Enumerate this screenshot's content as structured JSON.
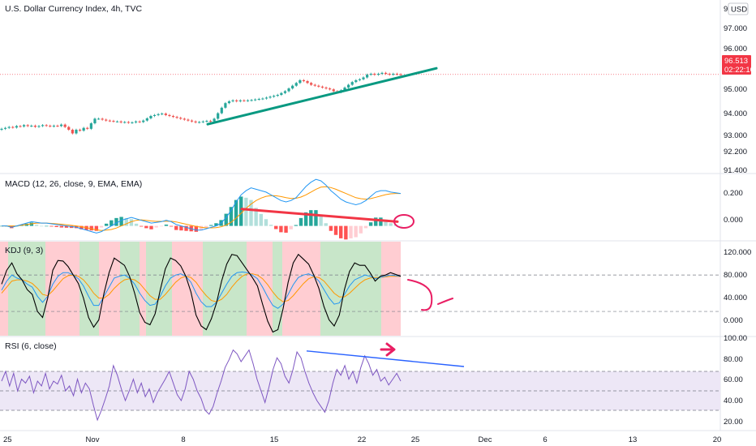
{
  "header": {
    "title": "U.S. Dollar Currency Index, 4h, TVC",
    "currency_label": "USD"
  },
  "price_tag": {
    "price": "96.513",
    "countdown": "02:22:10",
    "color": "#f23645"
  },
  "colors": {
    "up": "#26a69a",
    "down": "#ef5350",
    "trendline_price": "#089981",
    "trendline_macd": "#f23645",
    "trendline_rsi": "#2962ff",
    "kdj_k": "#2196f3",
    "kdj_d": "#ff9800",
    "kdj_j": "#000000",
    "rsi_line": "#7e57c2",
    "annotation": "#e91e63",
    "kdj_bg_green": "#c8e6c9",
    "kdj_bg_red": "#ffcdd2"
  },
  "chart_data": [
    {
      "panel": "price",
      "type": "candlestick",
      "ylim": [
        91.2,
        99.6
      ],
      "y_ticks": [
        "97.000",
        "96.000",
        "95.000",
        "94.000",
        "93.000",
        "92.200",
        "91.400"
      ],
      "top_tick_partial": "95",
      "last_price": 96.513,
      "close_series": [
        93.55,
        93.6,
        93.65,
        93.62,
        93.7,
        93.68,
        93.75,
        93.7,
        93.72,
        93.66,
        93.7,
        93.75,
        93.72,
        93.68,
        93.72,
        93.7,
        93.78,
        93.65,
        93.5,
        93.3,
        93.5,
        93.45,
        93.6,
        93.55,
        93.85,
        94.1,
        94.1,
        94.05,
        94.0,
        93.98,
        93.95,
        93.95,
        93.9,
        93.92,
        93.88,
        93.9,
        93.95,
        93.92,
        94.0,
        94.12,
        94.25,
        94.3,
        94.35,
        94.38,
        94.3,
        94.25,
        94.2,
        94.15,
        94.1,
        94.05,
        94.0,
        93.95,
        93.9,
        93.92,
        93.95,
        93.98,
        93.96,
        94.1,
        94.4,
        94.7,
        94.95,
        95.05,
        95.1,
        95.05,
        95.1,
        95.08,
        95.1,
        95.12,
        95.15,
        95.18,
        95.2,
        95.25,
        95.3,
        95.35,
        95.4,
        95.5,
        95.6,
        95.75,
        95.9,
        96.05,
        96.2,
        96.15,
        96.05,
        95.95,
        95.9,
        95.85,
        95.8,
        95.75,
        95.7,
        95.6,
        95.55,
        95.65,
        95.8,
        95.95,
        96.1,
        96.2,
        96.25,
        96.35,
        96.5,
        96.55,
        96.5,
        96.55,
        96.6,
        96.55,
        96.5,
        96.55,
        96.52,
        96.51
      ],
      "trendline": {
        "from": [
          "Nov 8 +1",
          93.8
        ],
        "to": [
          "Nov 25",
          96.85
        ]
      }
    },
    {
      "panel": "macd",
      "title": "MACD (12, 26, close, 9, EMA, EMA)",
      "type": "line",
      "ylim": [
        -0.1,
        0.36
      ],
      "y_ticks": [
        "0.200",
        "0.000"
      ],
      "series": [
        {
          "name": "MACD",
          "values": [
            0.0,
            0.0,
            -0.01,
            0.0,
            0.01,
            0.02,
            0.03,
            0.025,
            0.02,
            0.02,
            0.015,
            0.01,
            0.005,
            0.0,
            -0.005,
            -0.01,
            -0.02,
            -0.03,
            -0.04,
            -0.05,
            -0.04,
            -0.02,
            0.0,
            0.02,
            0.04,
            0.05,
            0.06,
            0.05,
            0.04,
            0.03,
            0.02,
            0.025,
            0.03,
            0.04,
            0.03,
            0.01,
            0.0,
            -0.01,
            -0.02,
            -0.03,
            -0.03,
            -0.02,
            -0.01,
            0.0,
            0.02,
            0.06,
            0.11,
            0.17,
            0.22,
            0.25,
            0.27,
            0.26,
            0.25,
            0.24,
            0.22,
            0.2,
            0.18,
            0.17,
            0.18,
            0.2,
            0.24,
            0.28,
            0.31,
            0.33,
            0.32,
            0.29,
            0.25,
            0.22,
            0.19,
            0.17,
            0.16,
            0.15,
            0.16,
            0.18,
            0.21,
            0.24,
            0.25,
            0.25,
            0.24,
            0.235,
            0.23
          ]
        },
        {
          "name": "Signal",
          "values": [
            0.0,
            0.0,
            0.0,
            0.0,
            0.005,
            0.01,
            0.015,
            0.02,
            0.02,
            0.02,
            0.018,
            0.015,
            0.012,
            0.008,
            0.004,
            0.0,
            -0.005,
            -0.012,
            -0.02,
            -0.028,
            -0.033,
            -0.03,
            -0.025,
            -0.015,
            0.0,
            0.015,
            0.03,
            0.04,
            0.043,
            0.04,
            0.035,
            0.032,
            0.032,
            0.034,
            0.033,
            0.028,
            0.02,
            0.012,
            0.004,
            -0.004,
            -0.01,
            -0.014,
            -0.014,
            -0.012,
            -0.006,
            0.006,
            0.026,
            0.055,
            0.09,
            0.125,
            0.155,
            0.18,
            0.197,
            0.21,
            0.215,
            0.214,
            0.208,
            0.2,
            0.195,
            0.196,
            0.205,
            0.22,
            0.24,
            0.26,
            0.275,
            0.278,
            0.272,
            0.26,
            0.245,
            0.23,
            0.215,
            0.2,
            0.193,
            0.19,
            0.194,
            0.203,
            0.213,
            0.222,
            0.228,
            0.23,
            0.23
          ]
        }
      ],
      "trendline": {
        "from": [
          "Nov 12",
          0.12
        ],
        "to": [
          "Nov 24",
          0.03
        ]
      }
    },
    {
      "panel": "kdj",
      "title": "KDJ (9, 3)",
      "type": "line",
      "ylim": [
        -20,
        135
      ],
      "y_ticks": [
        "120.000",
        "80.000",
        "40.000",
        "0.000"
      ],
      "reference_levels": [
        80,
        20
      ],
      "series": [
        {
          "name": "K",
          "values": [
            55,
            70,
            80,
            75,
            72,
            65,
            60,
            45,
            35,
            45,
            65,
            78,
            84,
            84,
            80,
            74,
            62,
            45,
            30,
            30,
            45,
            60,
            75,
            78,
            80,
            75,
            65,
            50,
            38,
            30,
            32,
            45,
            62,
            75,
            80,
            82,
            78,
            68,
            50,
            36,
            28,
            28,
            35,
            50,
            65,
            78,
            84,
            85,
            84,
            80,
            74,
            60,
            44,
            30,
            25,
            32,
            48,
            64,
            76,
            80,
            82,
            78,
            70,
            56,
            42,
            32,
            34,
            48,
            62,
            72,
            76,
            80,
            78,
            74,
            76,
            78,
            80,
            79,
            78
          ]
        },
        {
          "name": "D",
          "values": [
            50,
            60,
            70,
            72,
            72,
            70,
            66,
            58,
            48,
            46,
            54,
            64,
            74,
            79,
            80,
            78,
            72,
            62,
            50,
            42,
            42,
            48,
            58,
            66,
            72,
            74,
            72,
            66,
            56,
            46,
            40,
            40,
            48,
            58,
            68,
            75,
            78,
            76,
            68,
            56,
            46,
            38,
            36,
            40,
            48,
            60,
            70,
            78,
            82,
            82,
            80,
            74,
            64,
            52,
            42,
            36,
            38,
            46,
            56,
            66,
            74,
            77,
            76,
            70,
            60,
            50,
            44,
            44,
            50,
            58,
            66,
            72,
            75,
            76,
            76,
            77,
            78,
            78,
            78
          ]
        },
        {
          "name": "J",
          "values": [
            65,
            88,
            100,
            82,
            72,
            56,
            48,
            20,
            10,
            42,
            88,
            104,
            103,
            94,
            80,
            66,
            42,
            10,
            -6,
            6,
            50,
            84,
            108,
            102,
            96,
            78,
            50,
            18,
            2,
            -2,
            16,
            55,
            90,
            108,
            104,
            95,
            78,
            52,
            14,
            -4,
            -10,
            8,
            34,
            70,
            98,
            114,
            112,
            100,
            88,
            76,
            62,
            32,
            4,
            -14,
            -10,
            24,
            68,
            100,
            114,
            106,
            98,
            80,
            58,
            28,
            6,
            -4,
            14,
            56,
            86,
            100,
            96,
            96,
            84,
            70,
            78,
            80,
            84,
            81,
            78
          ]
        }
      ]
    },
    {
      "panel": "rsi",
      "title": "RSI (6, close)",
      "type": "line",
      "ylim": [
        10,
        105
      ],
      "y_ticks": [
        "100.00",
        "80.00",
        "60.00",
        "40.00",
        "20.00"
      ],
      "band": [
        70,
        30
      ],
      "midline": 50,
      "series": [
        {
          "name": "RSI",
          "values": [
            60,
            70,
            55,
            68,
            50,
            62,
            58,
            65,
            48,
            60,
            55,
            68,
            52,
            60,
            57,
            66,
            50,
            55,
            45,
            62,
            48,
            58,
            52,
            35,
            20,
            30,
            42,
            55,
            76,
            66,
            52,
            40,
            50,
            62,
            48,
            58,
            44,
            52,
            38,
            48,
            55,
            62,
            70,
            58,
            46,
            40,
            52,
            70,
            62,
            50,
            42,
            30,
            26,
            34,
            48,
            60,
            74,
            82,
            92,
            88,
            80,
            86,
            92,
            78,
            62,
            50,
            38,
            54,
            72,
            84,
            78,
            65,
            58,
            72,
            90,
            84,
            70,
            58,
            48,
            40,
            34,
            28,
            40,
            58,
            72,
            66,
            76,
            62,
            70,
            58,
            74,
            86,
            78,
            66,
            72,
            60,
            64,
            56,
            62,
            68,
            60
          ]
        }
      ],
      "trendline": {
        "from": [
          "Nov 17",
          91
        ],
        "to": [
          "Nov 28",
          75
        ]
      }
    }
  ],
  "x_axis": {
    "ticks": [
      "25",
      "Nov",
      "8",
      "15",
      "22",
      "25",
      "Dec",
      "6",
      "13",
      "20"
    ]
  }
}
